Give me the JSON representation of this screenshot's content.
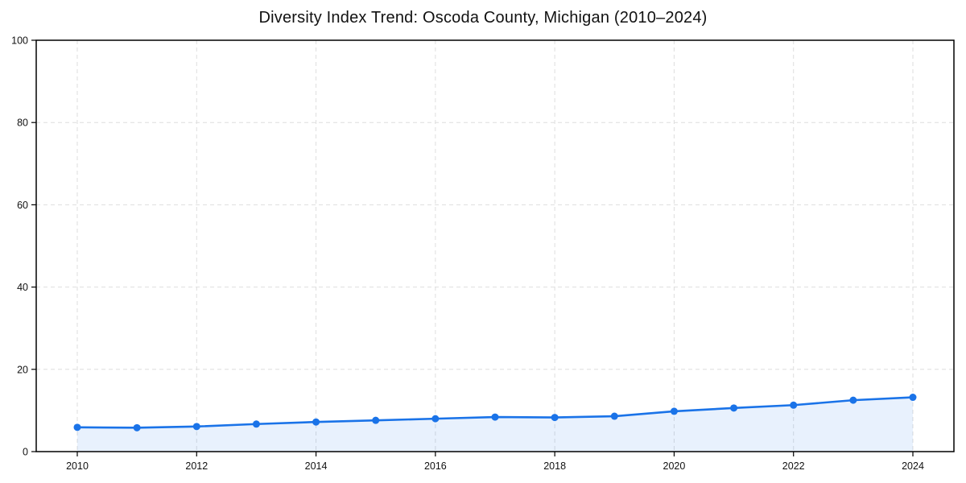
{
  "chart_data": {
    "type": "line",
    "title": "Diversity Index Trend: Oscoda County, Michigan (2010–2024)",
    "x": [
      2010,
      2011,
      2012,
      2013,
      2014,
      2015,
      2016,
      2017,
      2018,
      2019,
      2020,
      2021,
      2022,
      2023,
      2024
    ],
    "values": [
      5.9,
      5.8,
      6.1,
      6.7,
      7.2,
      7.6,
      8.0,
      8.4,
      8.3,
      8.6,
      9.8,
      10.6,
      11.3,
      12.5,
      13.2
    ],
    "xticks": [
      2010,
      2012,
      2014,
      2016,
      2018,
      2020,
      2022,
      2024
    ],
    "yticks": [
      0,
      20,
      40,
      60,
      80,
      100
    ],
    "ylim": [
      0,
      100
    ],
    "grid": "dashed",
    "legend": "none",
    "xlabel": "",
    "ylabel": "",
    "line_color": "#1a73e8",
    "marker_color": "#1a73e8",
    "fill_color": "rgba(26,115,232,0.10)",
    "gridline_color": "#dedede",
    "frame_color": "#000000",
    "tick_label_color": "#111111",
    "title_color": "#111111",
    "background": "#ffffff"
  }
}
